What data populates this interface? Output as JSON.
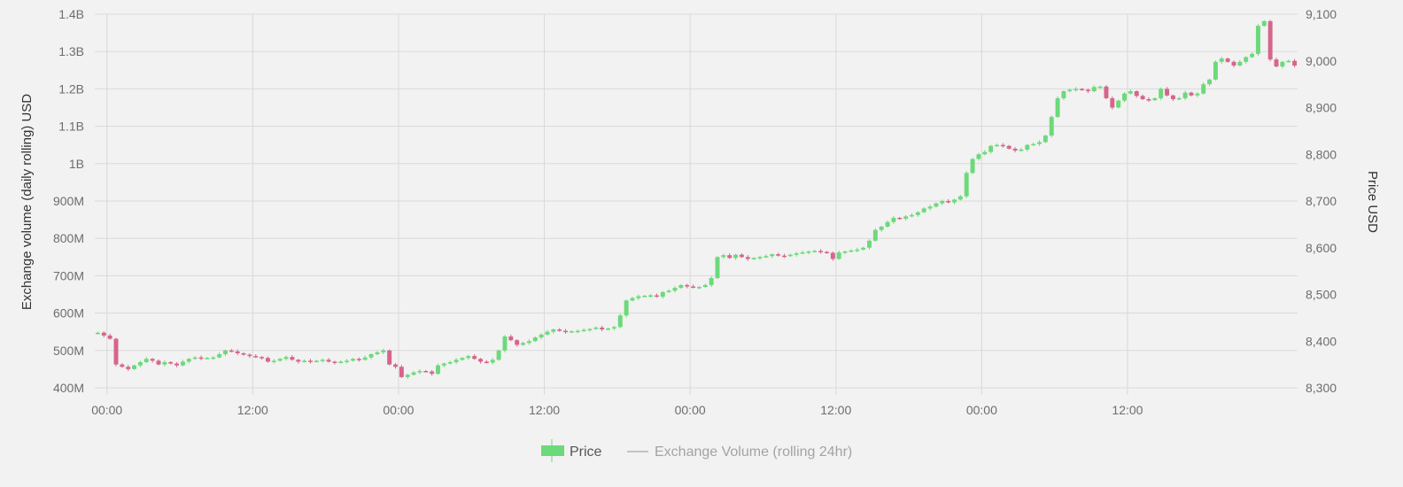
{
  "chart_data": {
    "type": "candlestick",
    "title": "",
    "y_left_label": "Exchange volume (daily rolling) USD",
    "y_right_label": "Price USD",
    "y_left_ticks": [
      "400M",
      "500M",
      "600M",
      "700M",
      "800M",
      "900M",
      "1B",
      "1.1B",
      "1.2B",
      "1.3B",
      "1.4B"
    ],
    "y_left_range": [
      400000000,
      1400000000
    ],
    "y_right_ticks": [
      "8,300",
      "8,400",
      "8,500",
      "8,600",
      "8,700",
      "8,800",
      "8,900",
      "9,000",
      "9,100"
    ],
    "y_right_range": [
      8300,
      9100
    ],
    "x_tick_labels": [
      "00:00",
      "12:00",
      "00:00",
      "12:00",
      "00:00",
      "12:00",
      "00:00",
      "12:00"
    ],
    "grid": true,
    "legend": {
      "position": "bottom-center",
      "items": [
        {
          "label": "Price",
          "color": "#6cd97a"
        },
        {
          "label": "Exchange Volume (rolling 24hr)",
          "color": "#b3b3b3"
        }
      ]
    },
    "colors": {
      "up": "#6cd97a",
      "down": "#d6658a",
      "grid": "#d9d9d9",
      "background": "#f2f2f2"
    },
    "candle_closes": [
      8418,
      8412,
      8405,
      8350,
      8345,
      8340,
      8348,
      8355,
      8362,
      8358,
      8350,
      8355,
      8352,
      8348,
      8356,
      8362,
      8365,
      8363,
      8364,
      8365,
      8372,
      8380,
      8378,
      8374,
      8371,
      8368,
      8366,
      8364,
      8356,
      8358,
      8362,
      8366,
      8360,
      8356,
      8358,
      8356,
      8358,
      8360,
      8356,
      8354,
      8356,
      8358,
      8362,
      8360,
      8365,
      8372,
      8376,
      8380,
      8350,
      8345,
      8323,
      8328,
      8333,
      8336,
      8335,
      8330,
      8348,
      8352,
      8355,
      8360,
      8364,
      8368,
      8362,
      8356,
      8354,
      8360,
      8380,
      8410,
      8402,
      8392,
      8396,
      8400,
      8408,
      8414,
      8420,
      8425,
      8422,
      8420,
      8421,
      8422,
      8424,
      8426,
      8429,
      8425,
      8427,
      8430,
      8455,
      8487,
      8492,
      8496,
      8497,
      8498,
      8495,
      8505,
      8508,
      8514,
      8520,
      8517,
      8515,
      8516,
      8520,
      8535,
      8580,
      8584,
      8578,
      8585,
      8580,
      8576,
      8578,
      8580,
      8582,
      8586,
      8583,
      8582,
      8585,
      8588,
      8590,
      8592,
      8593,
      8591,
      8589,
      8576,
      8590,
      8592,
      8594,
      8596,
      8600,
      8615,
      8638,
      8645,
      8655,
      8664,
      8662,
      8667,
      8670,
      8676,
      8684,
      8688,
      8695,
      8700,
      8697,
      8703,
      8710,
      8760,
      8790,
      8800,
      8805,
      8818,
      8820,
      8818,
      8812,
      8808,
      8810,
      8820,
      8822,
      8826,
      8840,
      8880,
      8920,
      8935,
      8938,
      8940,
      8938,
      8935,
      8944,
      8945,
      8920,
      8900,
      8915,
      8930,
      8935,
      8925,
      8918,
      8916,
      8920,
      8940,
      8926,
      8918,
      8920,
      8932,
      8926,
      8930,
      8950,
      8960,
      8998,
      9005,
      8998,
      8990,
      8998,
      9008,
      9015,
      9075,
      9085,
      9003,
      8988,
      8998,
      9000,
      8990
    ],
    "x_range": [
      0,
      198
    ]
  }
}
